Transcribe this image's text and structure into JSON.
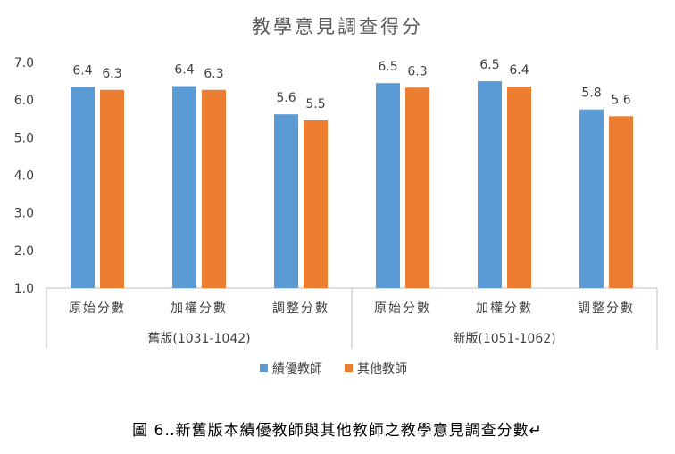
{
  "title": "教學意見調查得分",
  "caption": "圖 6‥新舊版本績優教師與其他教師之教學意見調查分數↵",
  "colors": {
    "series1": "#5B9BD5",
    "series2": "#ED7D31",
    "axis": "#BFBFBF",
    "text": "#404040"
  },
  "chart_data": {
    "type": "bar",
    "ylim": [
      1.0,
      7.0
    ],
    "yticks": [
      "1.0",
      "2.0",
      "3.0",
      "4.0",
      "5.0",
      "6.0",
      "7.0"
    ],
    "groups": [
      {
        "label": "舊版(1031-1042)",
        "categories": [
          "原始分數",
          "加權分數",
          "調整分數"
        ]
      },
      {
        "label": "新版(1051-1062)",
        "categories": [
          "原始分數",
          "加權分數",
          "調整分數"
        ]
      }
    ],
    "series": [
      {
        "name": "績優教師",
        "values": [
          6.35,
          6.37,
          5.62,
          6.45,
          6.5,
          5.75
        ],
        "labels": [
          "6.4",
          "6.4",
          "5.6",
          "6.5",
          "6.5",
          "5.8"
        ]
      },
      {
        "name": "其他教師",
        "values": [
          6.27,
          6.27,
          5.46,
          6.33,
          6.36,
          5.57
        ],
        "labels": [
          "6.3",
          "6.3",
          "5.5",
          "6.3",
          "6.4",
          "5.6"
        ]
      }
    ]
  }
}
